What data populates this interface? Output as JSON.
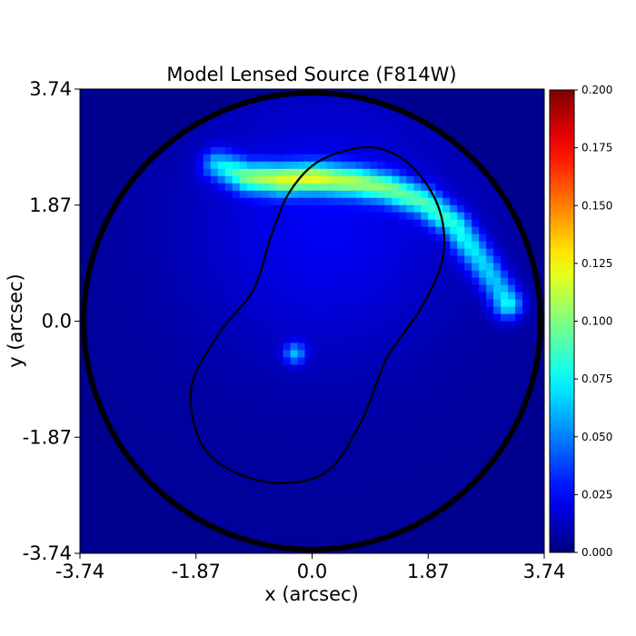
{
  "chart_data": {
    "type": "heatmap",
    "title": "Model Lensed Source (F814W)",
    "xlabel": "x (arcsec)",
    "ylabel": "y (arcsec)",
    "xlim": [
      -3.74,
      3.74
    ],
    "ylim": [
      -3.74,
      3.74
    ],
    "x_ticks": [
      -3.74,
      -1.87,
      0.0,
      1.87,
      3.74
    ],
    "x_tick_labels": [
      "-3.74",
      "-1.87",
      "0.0",
      "1.87",
      "3.74"
    ],
    "y_ticks": [
      -3.74,
      -1.87,
      0.0,
      1.87,
      3.74
    ],
    "y_tick_labels": [
      "-3.74",
      "-1.87",
      "0.0",
      "1.87",
      "3.74"
    ],
    "colormap": "jet",
    "colorbar": {
      "range": [
        0.0,
        0.2
      ],
      "ticks": [
        0.0,
        0.025,
        0.05,
        0.075,
        0.1,
        0.125,
        0.15,
        0.175,
        0.2
      ],
      "tick_labels": [
        "0.000",
        "0.025",
        "0.050",
        "0.075",
        "0.100",
        "0.125",
        "0.150",
        "0.175",
        "0.200"
      ]
    },
    "mask_circle_radius": 3.68,
    "background_value": 0.005,
    "arc_points": [
      [
        -1.52,
        2.52
      ],
      [
        -1.05,
        2.32
      ],
      [
        -0.5,
        2.28
      ],
      [
        0.05,
        2.3
      ],
      [
        0.65,
        2.25
      ],
      [
        1.2,
        2.15
      ],
      [
        1.8,
        1.92
      ],
      [
        2.3,
        1.55
      ],
      [
        2.7,
        1.0
      ],
      [
        3.0,
        0.55
      ],
      [
        3.15,
        0.28
      ]
    ],
    "arc_values": [
      0.055,
      0.085,
      0.1,
      0.1,
      0.09,
      0.082,
      0.075,
      0.07,
      0.06,
      0.055,
      0.07
    ],
    "bright_spot": {
      "x": -0.28,
      "y": -0.52,
      "value": 0.05
    },
    "critical_curve": [
      [
        0.95,
        2.8
      ],
      [
        1.6,
        2.5
      ],
      [
        2.05,
        1.8
      ],
      [
        2.1,
        1.0
      ],
      [
        1.75,
        0.2
      ],
      [
        1.2,
        -0.6
      ],
      [
        0.8,
        -1.6
      ],
      [
        0.2,
        -2.45
      ],
      [
        -0.8,
        -2.58
      ],
      [
        -1.7,
        -2.1
      ],
      [
        -1.95,
        -1.1
      ],
      [
        -1.5,
        -0.2
      ],
      [
        -0.95,
        0.5
      ],
      [
        -0.65,
        1.4
      ],
      [
        -0.35,
        2.1
      ],
      [
        0.15,
        2.6
      ]
    ]
  }
}
